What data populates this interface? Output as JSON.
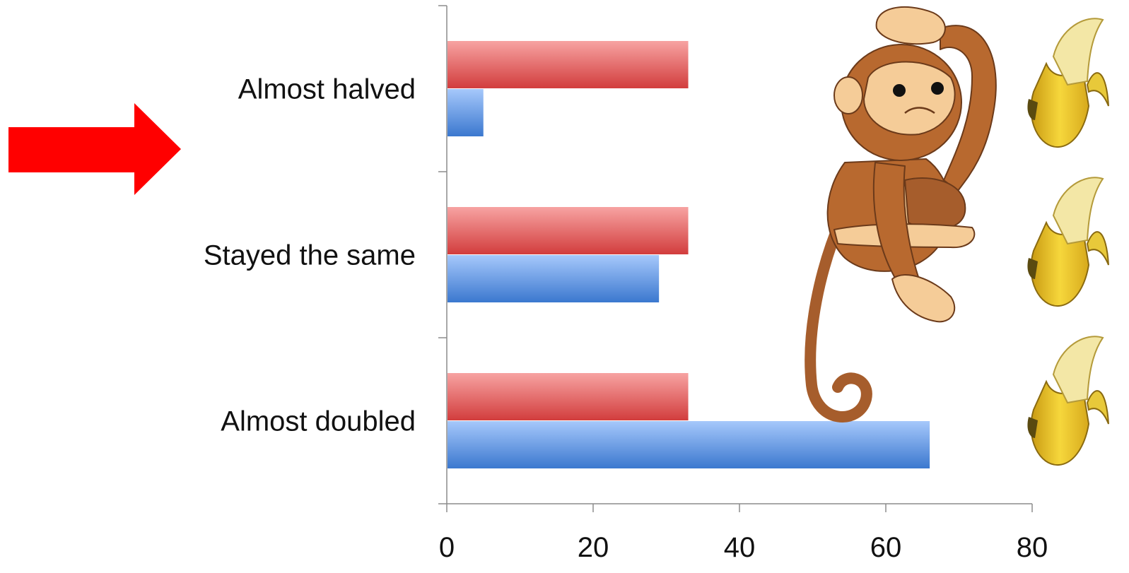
{
  "chart_data": {
    "type": "bar",
    "orientation": "horizontal",
    "categories": [
      "Almost halved",
      "Stayed the same",
      "Almost doubled"
    ],
    "series": [
      {
        "values": [
          33,
          33,
          33
        ],
        "color": "#d94848"
      },
      {
        "values": [
          5,
          29,
          66
        ],
        "color": "#5b8fdd"
      }
    ],
    "xticks": [
      "0",
      "20",
      "40",
      "60",
      "80"
    ],
    "xlim": [
      0,
      80
    ],
    "grid": false,
    "legend": "none"
  },
  "decorations": {
    "arrow": {
      "icon": "arrow-right-icon",
      "color": "#ff0000",
      "points_to": "Almost halved"
    },
    "monkey": {
      "icon": "monkey-illustration"
    },
    "bananas": {
      "icon": "banana-illustration",
      "count": 3
    }
  }
}
